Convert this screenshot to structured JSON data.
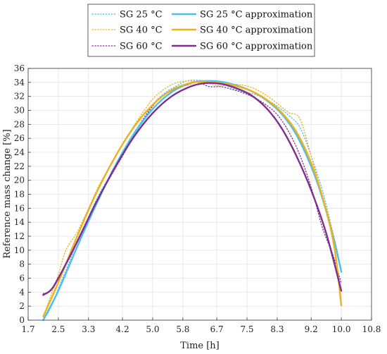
{
  "chart_data": {
    "type": "line",
    "xlabel": "Time [h]",
    "ylabel": "Reference mass change [%]",
    "xlim": [
      1.7,
      10.8
    ],
    "ylim": [
      0,
      36
    ],
    "x_ticks": [
      "1.7",
      "2.5",
      "3.3",
      "4.2",
      "5.0",
      "5.8",
      "6.7",
      "7.5",
      "8.3",
      "9.2",
      "10.0",
      "10.8"
    ],
    "y_ticks": [
      "0",
      "2",
      "4",
      "6",
      "8",
      "10",
      "12",
      "14",
      "16",
      "18",
      "20",
      "22",
      "24",
      "26",
      "28",
      "30",
      "32",
      "34",
      "36"
    ],
    "grid": true,
    "legend_position": "top",
    "series": [
      {
        "name": "SG 25 °C",
        "style": "dotted",
        "color": "#4DBEEE",
        "points": [
          [
            2.1,
            0
          ],
          [
            2.3,
            1.8
          ],
          [
            2.5,
            4.5
          ],
          [
            2.8,
            8.5
          ],
          [
            3.0,
            11.2
          ],
          [
            3.3,
            14.8
          ],
          [
            3.6,
            18.2
          ],
          [
            4.0,
            21.8
          ],
          [
            4.3,
            25
          ],
          [
            4.6,
            27.6
          ],
          [
            5.0,
            30.8
          ],
          [
            5.3,
            32.4
          ],
          [
            5.6,
            33.4
          ],
          [
            5.9,
            34.2
          ],
          [
            6.2,
            34.3
          ],
          [
            6.5,
            34.1
          ],
          [
            6.8,
            33.9
          ],
          [
            7.1,
            33.2
          ],
          [
            7.4,
            32.6
          ],
          [
            7.7,
            32.3
          ],
          [
            8.0,
            31.6
          ],
          [
            8.3,
            30.6
          ],
          [
            8.6,
            29.3
          ],
          [
            8.9,
            27.6
          ],
          [
            9.2,
            23.5
          ],
          [
            9.5,
            18.5
          ],
          [
            9.8,
            12
          ],
          [
            10.0,
            7.2
          ]
        ]
      },
      {
        "name": "SG 25 °C approximation",
        "style": "solid",
        "color": "#4DBEEE",
        "points": [
          [
            2.1,
            0
          ],
          [
            2.5,
            4.2
          ],
          [
            3.0,
            10.5
          ],
          [
            3.5,
            16.5
          ],
          [
            4.0,
            22
          ],
          [
            4.5,
            26.6
          ],
          [
            5.0,
            30.2
          ],
          [
            5.5,
            32.6
          ],
          [
            6.0,
            33.9
          ],
          [
            6.4,
            34.2
          ],
          [
            6.8,
            34.1
          ],
          [
            7.2,
            33.6
          ],
          [
            7.6,
            32.8
          ],
          [
            8.0,
            31.5
          ],
          [
            8.4,
            29.6
          ],
          [
            8.8,
            26.6
          ],
          [
            9.2,
            22
          ],
          [
            9.5,
            17.4
          ],
          [
            9.8,
            11.6
          ],
          [
            10.0,
            6.9
          ]
        ]
      },
      {
        "name": "SG 40 °C",
        "style": "dotted",
        "color": "#EDB120",
        "points": [
          [
            2.1,
            0.5
          ],
          [
            2.3,
            3.5
          ],
          [
            2.5,
            6.5
          ],
          [
            2.7,
            10
          ],
          [
            3.0,
            12.6
          ],
          [
            3.3,
            16
          ],
          [
            3.6,
            19.5
          ],
          [
            4.0,
            23.2
          ],
          [
            4.3,
            26
          ],
          [
            4.6,
            28.6
          ],
          [
            5.0,
            31.6
          ],
          [
            5.3,
            33
          ],
          [
            5.6,
            33.9
          ],
          [
            5.9,
            34.2
          ],
          [
            6.2,
            34.1
          ],
          [
            6.5,
            33.8
          ],
          [
            6.8,
            33.5
          ],
          [
            7.1,
            33.7
          ],
          [
            7.4,
            33.6
          ],
          [
            7.7,
            33.1
          ],
          [
            8.0,
            32.2
          ],
          [
            8.3,
            31
          ],
          [
            8.6,
            29.7
          ],
          [
            8.9,
            28.8
          ],
          [
            9.2,
            23.5
          ],
          [
            9.5,
            17.5
          ],
          [
            9.8,
            10.5
          ],
          [
            10.0,
            2
          ]
        ]
      },
      {
        "name": "SG 40 °C approximation",
        "style": "solid",
        "color": "#EDB120",
        "points": [
          [
            2.1,
            0.5
          ],
          [
            2.5,
            5.4
          ],
          [
            3.0,
            12
          ],
          [
            3.5,
            18.1
          ],
          [
            4.0,
            23.3
          ],
          [
            4.5,
            27.6
          ],
          [
            5.0,
            30.8
          ],
          [
            5.5,
            32.9
          ],
          [
            6.0,
            33.9
          ],
          [
            6.4,
            34.1
          ],
          [
            6.8,
            33.9
          ],
          [
            7.2,
            33.5
          ],
          [
            7.6,
            32.8
          ],
          [
            8.0,
            31.6
          ],
          [
            8.4,
            29.8
          ],
          [
            8.8,
            27
          ],
          [
            9.2,
            22.5
          ],
          [
            9.5,
            17.6
          ],
          [
            9.8,
            11
          ],
          [
            10.0,
            2.1
          ]
        ]
      },
      {
        "name": "SG 60 °C",
        "style": "dotted",
        "color": "#7E2F8E",
        "points": [
          [
            2.1,
            3.8
          ],
          [
            2.3,
            4.2
          ],
          [
            2.5,
            6
          ],
          [
            2.8,
            9
          ],
          [
            3.0,
            11.4
          ],
          [
            3.3,
            14.6
          ],
          [
            3.6,
            17.8
          ],
          [
            4.0,
            21.6
          ],
          [
            4.3,
            24.4
          ],
          [
            4.6,
            27.4
          ],
          [
            5.0,
            30.6
          ],
          [
            5.3,
            32.2
          ],
          [
            5.6,
            33
          ],
          [
            5.9,
            33.6
          ],
          [
            6.2,
            34
          ],
          [
            6.5,
            33.4
          ],
          [
            6.8,
            33.4
          ],
          [
            7.1,
            33
          ],
          [
            7.4,
            32.5
          ],
          [
            7.7,
            31.8
          ],
          [
            8.0,
            30.8
          ],
          [
            8.3,
            29.4
          ],
          [
            8.6,
            27
          ],
          [
            8.9,
            23.6
          ],
          [
            9.2,
            19
          ],
          [
            9.5,
            13.2
          ],
          [
            9.8,
            9
          ],
          [
            10.0,
            5.2
          ]
        ]
      },
      {
        "name": "SG 60 °C approximation",
        "style": "solid",
        "color": "#7E2F8E",
        "points": [
          [
            2.1,
            3.6
          ],
          [
            2.3,
            4.3
          ],
          [
            2.5,
            6
          ],
          [
            3.0,
            11.2
          ],
          [
            3.5,
            16.8
          ],
          [
            4.0,
            21.8
          ],
          [
            4.5,
            26.2
          ],
          [
            5.0,
            29.6
          ],
          [
            5.5,
            32
          ],
          [
            6.0,
            33.4
          ],
          [
            6.4,
            33.9
          ],
          [
            6.8,
            33.8
          ],
          [
            7.2,
            33.2
          ],
          [
            7.6,
            32.2
          ],
          [
            8.0,
            30.4
          ],
          [
            8.4,
            27.6
          ],
          [
            8.8,
            23.6
          ],
          [
            9.2,
            18.6
          ],
          [
            9.6,
            12.4
          ],
          [
            10.0,
            4.2
          ]
        ]
      }
    ]
  }
}
